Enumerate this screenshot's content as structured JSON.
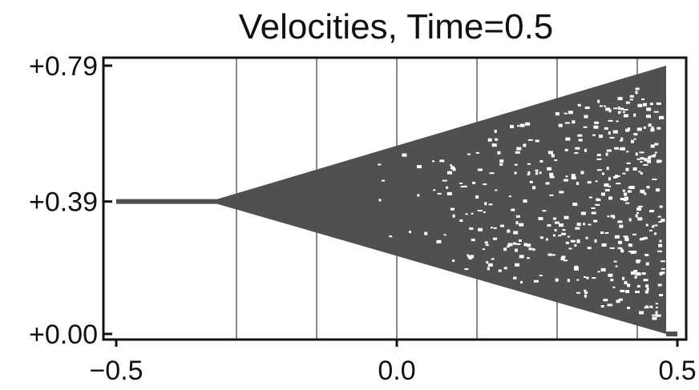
{
  "chart_data": {
    "type": "scatter",
    "title": "Velocities, Time=0.5",
    "xlabel": "",
    "ylabel": "",
    "xlim": [
      -0.5,
      0.5
    ],
    "ylim": [
      0.0,
      0.79
    ],
    "x_ticks": [
      {
        "value": -0.5,
        "label": "−0.5"
      },
      {
        "value": 0.0,
        "label": "0.0"
      },
      {
        "value": 0.5,
        "label": "0.5"
      }
    ],
    "y_ticks": [
      {
        "value": 0.0,
        "label": "+0.00"
      },
      {
        "value": 0.39,
        "label": "+0.39"
      },
      {
        "value": 0.79,
        "label": "+0.79"
      }
    ],
    "gridlines_x": [
      -0.2857,
      -0.1429,
      0.0,
      0.1429,
      0.2857,
      0.4286
    ],
    "series": [
      {
        "color": "#505050",
        "segments": [
          {
            "description": "flat",
            "x": [
              -0.5,
              -0.32
            ],
            "y": 0.39
          },
          {
            "description": "expanding fan",
            "x_start": -0.32,
            "x_end": 0.48,
            "y_center": 0.39,
            "upper_end": 0.79,
            "lower_end": 0.0
          },
          {
            "description": "tail",
            "x": [
              0.48,
              0.5
            ],
            "y": 0.0
          }
        ]
      }
    ],
    "colors": {
      "marks": "#505050",
      "grid": "#888888",
      "frame": "#111111",
      "background": "#ffffff"
    }
  }
}
